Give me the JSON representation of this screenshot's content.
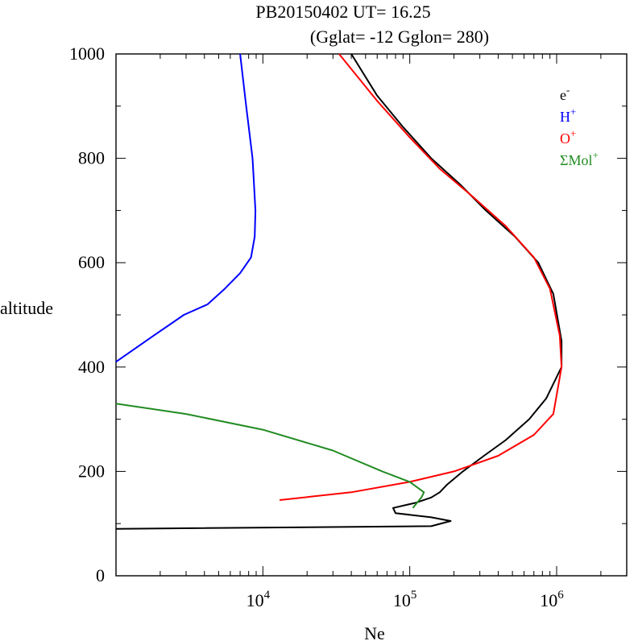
{
  "chart_data": {
    "type": "line",
    "title": "PB20150402   UT=  16.25",
    "subtitle": "(Gglat= -12   Gglon=  280)",
    "xlabel": "Ne",
    "ylabel": "altitude",
    "xscale": "log",
    "xlim": [
      1000,
      3000000
    ],
    "ylim": [
      0,
      1000
    ],
    "xtick_labels": [
      {
        "base": "10",
        "exp": "4",
        "value": 10000
      },
      {
        "base": "10",
        "exp": "5",
        "value": 100000
      },
      {
        "base": "10",
        "exp": "6",
        "value": 1000000
      }
    ],
    "ytick_labels": [
      "0",
      "200",
      "400",
      "600",
      "800",
      "1000"
    ],
    "ytick_values": [
      0,
      200,
      400,
      600,
      800,
      1000
    ],
    "legend_position": "top-right",
    "series": [
      {
        "name": "e",
        "sup": "-",
        "color": "#000000",
        "points": [
          [
            1000,
            90
          ],
          [
            140000,
            95
          ],
          [
            190000,
            105
          ],
          [
            140000,
            112
          ],
          [
            80000,
            120
          ],
          [
            77000,
            130
          ],
          [
            110000,
            140
          ],
          [
            140000,
            150
          ],
          [
            160000,
            160
          ],
          [
            180000,
            175
          ],
          [
            230000,
            200
          ],
          [
            320000,
            230
          ],
          [
            450000,
            260
          ],
          [
            650000,
            300
          ],
          [
            850000,
            340
          ],
          [
            1080000,
            400
          ],
          [
            1080000,
            450
          ],
          [
            950000,
            540
          ],
          [
            750000,
            600
          ],
          [
            520000,
            650
          ],
          [
            330000,
            700
          ],
          [
            220000,
            750
          ],
          [
            140000,
            800
          ],
          [
            90000,
            860
          ],
          [
            60000,
            920
          ],
          [
            40000,
            1000
          ]
        ]
      },
      {
        "name": "H",
        "sup": "+",
        "color": "#0000ff",
        "points": [
          [
            1000,
            410
          ],
          [
            1800,
            460
          ],
          [
            2900,
            500
          ],
          [
            4200,
            520
          ],
          [
            5500,
            550
          ],
          [
            7000,
            580
          ],
          [
            8300,
            610
          ],
          [
            8800,
            650
          ],
          [
            8900,
            700
          ],
          [
            8500,
            800
          ],
          [
            7700,
            900
          ],
          [
            7000,
            1000
          ]
        ]
      },
      {
        "name": "O",
        "sup": "+",
        "color": "#ff0000",
        "points": [
          [
            13000,
            145
          ],
          [
            40000,
            160
          ],
          [
            100000,
            180
          ],
          [
            200000,
            200
          ],
          [
            400000,
            230
          ],
          [
            700000,
            270
          ],
          [
            950000,
            310
          ],
          [
            1080000,
            400
          ],
          [
            1050000,
            460
          ],
          [
            900000,
            550
          ],
          [
            700000,
            610
          ],
          [
            450000,
            670
          ],
          [
            260000,
            730
          ],
          [
            160000,
            780
          ],
          [
            100000,
            840
          ],
          [
            60000,
            910
          ],
          [
            33000,
            1000
          ]
        ]
      },
      {
        "name": "ΣMol",
        "sup": "+",
        "color": "#228b22",
        "points": [
          [
            1000,
            330
          ],
          [
            3000,
            310
          ],
          [
            10000,
            280
          ],
          [
            30000,
            240
          ],
          [
            65000,
            200
          ],
          [
            100000,
            180
          ],
          [
            125000,
            160
          ],
          [
            120000,
            150
          ],
          [
            105000,
            130
          ]
        ]
      }
    ]
  }
}
